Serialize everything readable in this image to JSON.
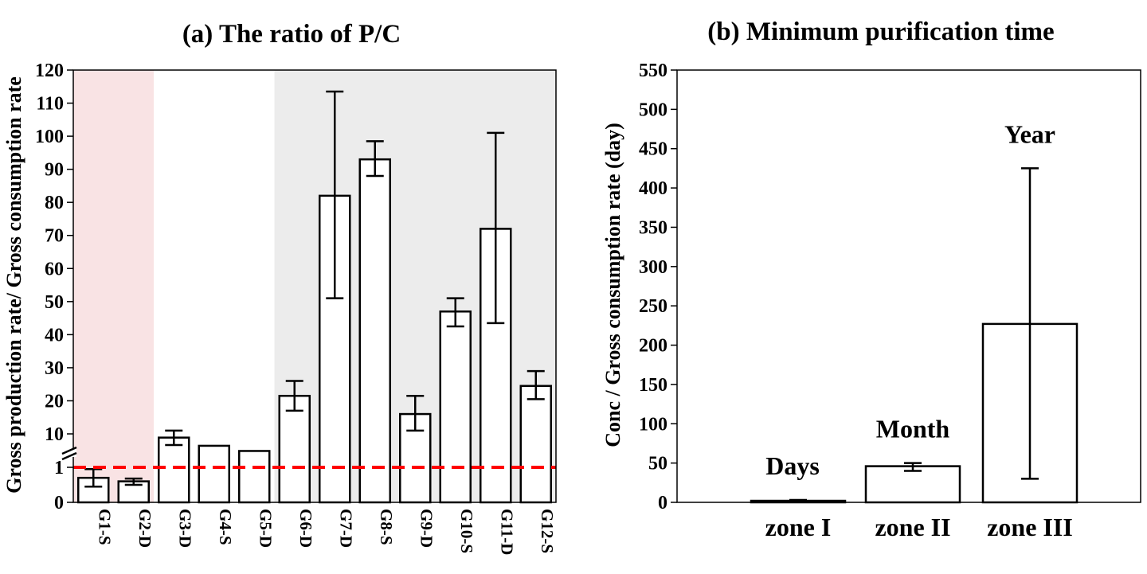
{
  "chart_data": [
    {
      "type": "bar",
      "title": "(a) The ratio of P/C",
      "ylabel": "Gross production rate/ Gross consumption rate",
      "xlabel": "",
      "y_axis_break": true,
      "yticks": [
        "0",
        "1",
        "10",
        "20",
        "30",
        "40",
        "50",
        "60",
        "70",
        "80",
        "90",
        "100",
        "110",
        "120"
      ],
      "ylim": [
        0,
        120
      ],
      "reference_line": {
        "value": 1,
        "style": "dashed",
        "color": "#ff0000"
      },
      "categories": [
        "G1-S",
        "G2-D",
        "G3-D",
        "G4-S",
        "G5-D",
        "G6-D",
        "G7-D",
        "G8-S",
        "G9-D",
        "G10-S",
        "G11-D",
        "G12-S"
      ],
      "values": [
        0.7,
        0.6,
        9,
        6.8,
        5.4,
        21.5,
        82,
        93,
        16,
        47,
        72,
        24.5
      ],
      "error_low": [
        0.45,
        0.5,
        7,
        6.8,
        5.4,
        17,
        51,
        88,
        11,
        42.5,
        43.5,
        20.5
      ],
      "error_high": [
        0.95,
        0.68,
        11,
        6.8,
        5.4,
        26,
        113.5,
        98.5,
        21.5,
        51,
        101,
        29
      ],
      "background_shading": [
        {
          "from": "G1-S",
          "to": "G2-D",
          "color": "#f9e3e4"
        },
        {
          "from": "G6-D",
          "to": "G12-S",
          "color": "#ececec"
        }
      ],
      "grid": false
    },
    {
      "type": "bar",
      "title": "(b) Minimum purification time",
      "ylabel": "Conc / Gross consumption rate (day)",
      "xlabel": "",
      "ylim": [
        0,
        550
      ],
      "ytick_step": 50,
      "categories": [
        "zone I",
        "zone II",
        "zone III"
      ],
      "values": [
        2,
        46,
        227
      ],
      "error_low": [
        1,
        40,
        30
      ],
      "error_high": [
        3,
        50,
        425
      ],
      "annotations": [
        "Days",
        "Month",
        "Year"
      ],
      "grid": false
    }
  ]
}
